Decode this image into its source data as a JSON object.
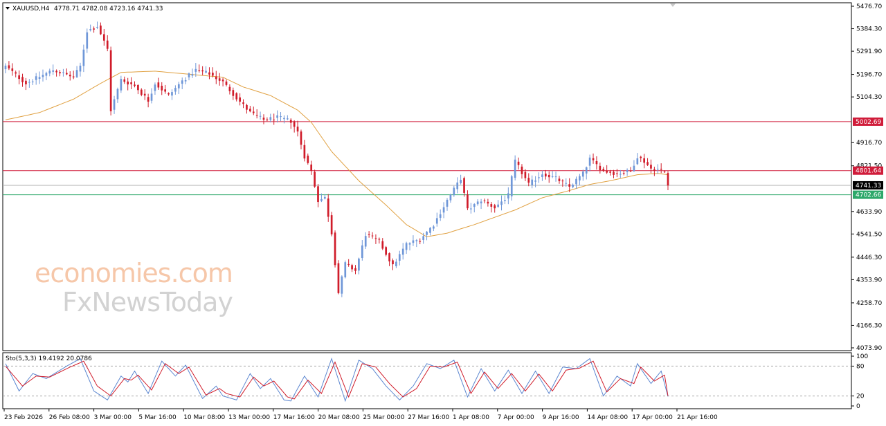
{
  "header": {
    "symbol": "XAUUSD,H4",
    "ohlc": "4778.71 4782.08 4723.16 4741.33"
  },
  "watermark": {
    "line1": "economies.com",
    "line2": "FxNewsToday"
  },
  "colors": {
    "bull": "#6f97d8",
    "bear": "#d01c2a",
    "ma": "#e0a040",
    "resistance": "#d01c3a",
    "support": "#2ea86a",
    "price_line": "#b0b0b0",
    "stoch_main": "#5b86d0",
    "stoch_signal": "#d01c2a"
  },
  "chart_data": [
    {
      "type": "candlestick",
      "symbol": "XAUUSD",
      "timeframe": "H4",
      "ylim": [
        4073.9,
        5476.7
      ],
      "y_ticks": [
        "5476.70",
        "5384.30",
        "5291.90",
        "5196.70",
        "5104.30",
        "4916.70",
        "4821.50",
        "4633.90",
        "4541.50",
        "4446.30",
        "4353.90",
        "4258.70",
        "4166.30",
        "4073.90"
      ],
      "x_ticks": [
        "23 Feb 2026",
        "26 Feb 08:00",
        "3 Mar 00:00",
        "5 Mar 16:00",
        "10 Mar 08:00",
        "13 Mar 00:00",
        "17 Mar 16:00",
        "20 Mar 08:00",
        "25 Mar 00:00",
        "27 Mar 16:00",
        "1 Apr 08:00",
        "7 Apr 00:00",
        "9 Apr 16:00",
        "14 Apr 08:00",
        "17 Apr 00:00",
        "21 Apr 16:00"
      ],
      "levels": [
        {
          "name": "resistance-1",
          "value": 5002.69,
          "label": "5002.69"
        },
        {
          "name": "resistance-2",
          "value": 4801.64,
          "label": "4801.64"
        },
        {
          "name": "current-price",
          "value": 4741.33,
          "label": "4741.33"
        },
        {
          "name": "support-1",
          "value": 4702.66,
          "label": "4702.66"
        }
      ],
      "anchors": [
        [
          0,
          5230
        ],
        [
          6,
          5160
        ],
        [
          14,
          5215
        ],
        [
          20,
          5185
        ],
        [
          22,
          5230
        ],
        [
          24,
          5375
        ],
        [
          27,
          5395
        ],
        [
          30,
          5300
        ],
        [
          31,
          5050
        ],
        [
          34,
          5175
        ],
        [
          38,
          5150
        ],
        [
          42,
          5090
        ],
        [
          44,
          5160
        ],
        [
          48,
          5110
        ],
        [
          52,
          5170
        ],
        [
          56,
          5215
        ],
        [
          60,
          5200
        ],
        [
          64,
          5165
        ],
        [
          68,
          5100
        ],
        [
          72,
          5040
        ],
        [
          76,
          5010
        ],
        [
          80,
          5020
        ],
        [
          84,
          5005
        ],
        [
          86,
          4960
        ],
        [
          88,
          4860
        ],
        [
          90,
          4800
        ],
        [
          92,
          4680
        ],
        [
          94,
          4690
        ],
        [
          96,
          4545
        ],
        [
          98,
          4300
        ],
        [
          100,
          4420
        ],
        [
          103,
          4390
        ],
        [
          106,
          4540
        ],
        [
          110,
          4510
        ],
        [
          112,
          4460
        ],
        [
          114,
          4410
        ],
        [
          118,
          4500
        ],
        [
          122,
          4520
        ],
        [
          126,
          4580
        ],
        [
          130,
          4680
        ],
        [
          134,
          4770
        ],
        [
          136,
          4640
        ],
        [
          140,
          4680
        ],
        [
          144,
          4650
        ],
        [
          148,
          4700
        ],
        [
          150,
          4840
        ],
        [
          154,
          4745
        ],
        [
          158,
          4790
        ],
        [
          162,
          4770
        ],
        [
          166,
          4735
        ],
        [
          170,
          4790
        ],
        [
          172,
          4850
        ],
        [
          176,
          4800
        ],
        [
          180,
          4790
        ],
        [
          184,
          4800
        ],
        [
          186,
          4860
        ],
        [
          188,
          4840
        ],
        [
          190,
          4810
        ],
        [
          192,
          4808
        ],
        [
          194,
          4795
        ],
        [
          195,
          4741
        ]
      ],
      "ma_anchors": [
        [
          0,
          5010
        ],
        [
          10,
          5040
        ],
        [
          20,
          5095
        ],
        [
          28,
          5160
        ],
        [
          34,
          5205
        ],
        [
          44,
          5210
        ],
        [
          56,
          5195
        ],
        [
          64,
          5185
        ],
        [
          70,
          5145
        ],
        [
          78,
          5110
        ],
        [
          86,
          5050
        ],
        [
          90,
          5000
        ],
        [
          96,
          4880
        ],
        [
          104,
          4760
        ],
        [
          112,
          4660
        ],
        [
          118,
          4580
        ],
        [
          124,
          4530
        ],
        [
          130,
          4545
        ],
        [
          138,
          4580
        ],
        [
          144,
          4610
        ],
        [
          150,
          4640
        ],
        [
          158,
          4690
        ],
        [
          166,
          4720
        ],
        [
          172,
          4745
        ],
        [
          178,
          4760
        ],
        [
          186,
          4785
        ],
        [
          192,
          4790
        ],
        [
          195,
          4785
        ]
      ]
    },
    {
      "type": "line",
      "name": "stochastic",
      "label": "Sto(5,3,3) 19.4192 20.0786",
      "ylim": [
        0,
        100
      ],
      "y_ticks": [
        "100",
        "80",
        "20",
        "0"
      ],
      "levels": [
        80,
        20
      ],
      "main_anchors": [
        [
          0,
          85
        ],
        [
          4,
          30
        ],
        [
          8,
          65
        ],
        [
          12,
          55
        ],
        [
          18,
          80
        ],
        [
          22,
          95
        ],
        [
          26,
          30
        ],
        [
          30,
          12
        ],
        [
          34,
          60
        ],
        [
          36,
          48
        ],
        [
          38,
          70
        ],
        [
          42,
          25
        ],
        [
          46,
          90
        ],
        [
          50,
          60
        ],
        [
          53,
          82
        ],
        [
          58,
          15
        ],
        [
          62,
          40
        ],
        [
          64,
          20
        ],
        [
          68,
          12
        ],
        [
          72,
          65
        ],
        [
          75,
          35
        ],
        [
          78,
          55
        ],
        [
          82,
          12
        ],
        [
          84,
          10
        ],
        [
          88,
          60
        ],
        [
          92,
          18
        ],
        [
          96,
          95
        ],
        [
          100,
          10
        ],
        [
          104,
          92
        ],
        [
          108,
          75
        ],
        [
          112,
          40
        ],
        [
          116,
          12
        ],
        [
          120,
          40
        ],
        [
          124,
          85
        ],
        [
          128,
          75
        ],
        [
          132,
          92
        ],
        [
          136,
          18
        ],
        [
          140,
          75
        ],
        [
          144,
          30
        ],
        [
          148,
          72
        ],
        [
          152,
          25
        ],
        [
          156,
          70
        ],
        [
          160,
          25
        ],
        [
          164,
          78
        ],
        [
          168,
          75
        ],
        [
          172,
          95
        ],
        [
          176,
          20
        ],
        [
          180,
          60
        ],
        [
          184,
          40
        ],
        [
          186,
          85
        ],
        [
          190,
          45
        ],
        [
          193,
          70
        ],
        [
          195,
          19
        ]
      ],
      "signal_anchors": [
        [
          0,
          80
        ],
        [
          5,
          40
        ],
        [
          9,
          60
        ],
        [
          13,
          58
        ],
        [
          19,
          78
        ],
        [
          23,
          90
        ],
        [
          27,
          40
        ],
        [
          31,
          20
        ],
        [
          35,
          55
        ],
        [
          37,
          52
        ],
        [
          39,
          62
        ],
        [
          43,
          32
        ],
        [
          47,
          85
        ],
        [
          51,
          65
        ],
        [
          54,
          78
        ],
        [
          59,
          22
        ],
        [
          63,
          35
        ],
        [
          65,
          25
        ],
        [
          69,
          18
        ],
        [
          73,
          58
        ],
        [
          76,
          40
        ],
        [
          79,
          50
        ],
        [
          83,
          18
        ],
        [
          85,
          14
        ],
        [
          89,
          52
        ],
        [
          93,
          25
        ],
        [
          97,
          88
        ],
        [
          101,
          18
        ],
        [
          105,
          85
        ],
        [
          109,
          78
        ],
        [
          113,
          45
        ],
        [
          117,
          18
        ],
        [
          121,
          35
        ],
        [
          125,
          80
        ],
        [
          129,
          78
        ],
        [
          133,
          88
        ],
        [
          137,
          25
        ],
        [
          141,
          68
        ],
        [
          145,
          35
        ],
        [
          149,
          65
        ],
        [
          153,
          30
        ],
        [
          157,
          64
        ],
        [
          161,
          30
        ],
        [
          165,
          72
        ],
        [
          169,
          76
        ],
        [
          173,
          90
        ],
        [
          177,
          28
        ],
        [
          181,
          55
        ],
        [
          185,
          45
        ],
        [
          187,
          78
        ],
        [
          191,
          50
        ],
        [
          194,
          62
        ],
        [
          195,
          20
        ]
      ]
    }
  ]
}
